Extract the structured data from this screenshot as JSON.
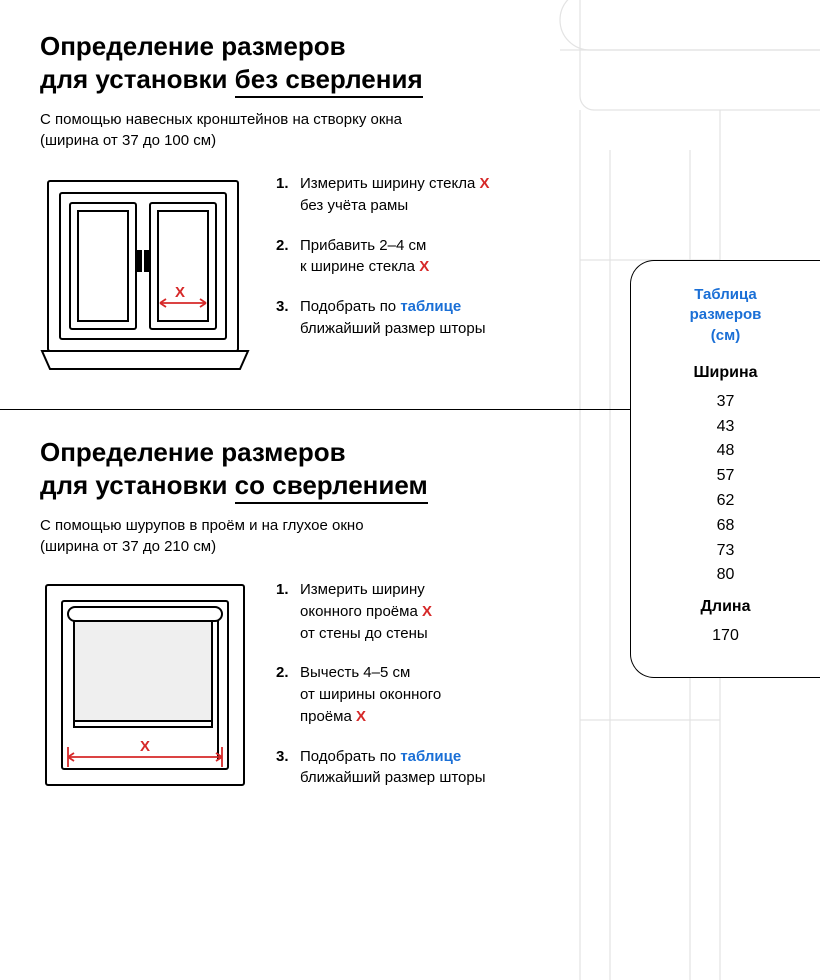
{
  "colors": {
    "text": "#000000",
    "accent_red": "#d62828",
    "link_blue": "#1a6fd6",
    "outline": "#000000",
    "bg_outline": "#c8c8c8",
    "shade_fill": "#efefef"
  },
  "section1": {
    "title_l1": "Определение размеров",
    "title_l2a": "для установки ",
    "title_l2b": "без сверления",
    "subtitle": "С помощью навесных кронштейнов на створку окна\n(ширина от 37 до 100 см)",
    "steps": [
      {
        "pre": "Измерить ширину стекла ",
        "x": "X",
        "post": "\nбез учёта рамы"
      },
      {
        "pre": "Прибавить 2–4 см\nк ширине стекла ",
        "x": "X",
        "post": ""
      },
      {
        "pre": "Подобрать по ",
        "link": "таблице",
        "post": "\nближайший размер шторы"
      }
    ],
    "illus": {
      "label_x": "X"
    }
  },
  "section2": {
    "title_l1": "Определение размеров",
    "title_l2a": "для установки ",
    "title_l2b": "со сверлением",
    "subtitle": "С помощью шурупов в проём и на глухое окно\n(ширина от 37 до 210 см)",
    "steps": [
      {
        "pre": "Измерить ширину\nоконного проёма ",
        "x": "X",
        "post": "\nот стены до стены"
      },
      {
        "pre": "Вычесть 4–5 см\nот ширины оконного\nпроёма ",
        "x": "X",
        "post": ""
      },
      {
        "pre": "Подобрать по ",
        "link": "таблице",
        "post": "\nближайший размер шторы"
      }
    ],
    "illus": {
      "label_x": "X"
    }
  },
  "size_card": {
    "title": "Таблица\nразмеров\n(см)",
    "width_label": "Ширина",
    "widths": [
      "37",
      "43",
      "48",
      "57",
      "62",
      "68",
      "73",
      "80"
    ],
    "length_label": "Длина",
    "lengths": [
      "170"
    ]
  }
}
